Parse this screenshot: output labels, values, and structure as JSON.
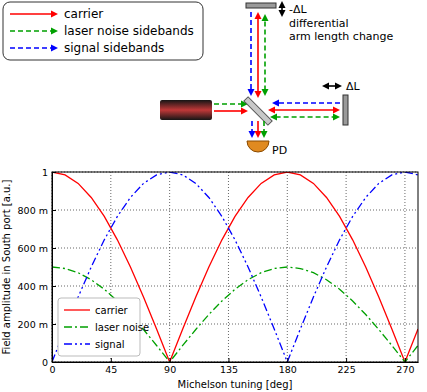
{
  "chart_data": {
    "type": "line",
    "x": [
      0,
      10,
      20,
      30,
      40,
      50,
      60,
      70,
      80,
      90,
      100,
      110,
      120,
      130,
      140,
      150,
      160,
      170,
      180,
      190,
      200,
      210,
      220,
      230,
      240,
      250,
      260,
      270,
      280
    ],
    "xlim": [
      0,
      280
    ],
    "xticks": [
      0,
      45,
      90,
      135,
      180,
      225,
      270
    ],
    "ylim": [
      0,
      1
    ],
    "yticks": [
      0,
      {
        "value": 0.2,
        "label": "200 m"
      },
      {
        "value": 0.4,
        "label": "400 m"
      },
      {
        "value": 0.6,
        "label": "600 m"
      },
      {
        "value": 0.8,
        "label": "800 m"
      },
      1
    ],
    "x_label": "Michelson tuning [deg]",
    "y_label": "Field amplitude in South port [a.u.]",
    "grid": true,
    "legend": "lower left",
    "series": [
      {
        "name": "carrier",
        "color": "#ff0000",
        "line_style": "solid",
        "values": [
          1,
          0.985,
          0.94,
          0.866,
          0.766,
          0.643,
          0.5,
          0.342,
          0.174,
          0,
          0.174,
          0.342,
          0.5,
          0.643,
          0.766,
          0.866,
          0.94,
          0.985,
          1,
          0.985,
          0.94,
          0.866,
          0.766,
          0.643,
          0.5,
          0.342,
          0.174,
          0,
          0.174
        ]
      },
      {
        "name": "laser noise",
        "color": "#00a000",
        "line_style": "dashdot",
        "values": [
          0.5,
          0.492,
          0.47,
          0.433,
          0.383,
          0.321,
          0.25,
          0.171,
          0.087,
          0,
          0.087,
          0.171,
          0.25,
          0.321,
          0.383,
          0.433,
          0.47,
          0.492,
          0.5,
          0.492,
          0.47,
          0.433,
          0.383,
          0.321,
          0.25,
          0.171,
          0.087,
          0,
          0.087
        ]
      },
      {
        "name": "signal",
        "color": "#0000ff",
        "line_style": "dashdotdot",
        "values": [
          0,
          0.174,
          0.342,
          0.5,
          0.643,
          0.766,
          0.866,
          0.94,
          0.985,
          1,
          0.985,
          0.94,
          0.866,
          0.766,
          0.643,
          0.5,
          0.342,
          0.174,
          0,
          0.174,
          0.342,
          0.5,
          0.643,
          0.766,
          0.866,
          0.94,
          0.985,
          1,
          0.985
        ]
      }
    ]
  },
  "diagram": {
    "legend": [
      {
        "label": "carrier",
        "color": "#ff0000",
        "line_style": "solid"
      },
      {
        "label": "laser noise sidebands",
        "color": "#00a000",
        "line_style": "dashed"
      },
      {
        "label": "signal sidebands",
        "color": "#0000ff",
        "line_style": "dashed"
      }
    ],
    "top_mirror_label": "-ΔL",
    "annotation_lines": [
      "differential",
      "arm length change"
    ],
    "right_mirror_label": "ΔL",
    "detector_label": "PD"
  }
}
